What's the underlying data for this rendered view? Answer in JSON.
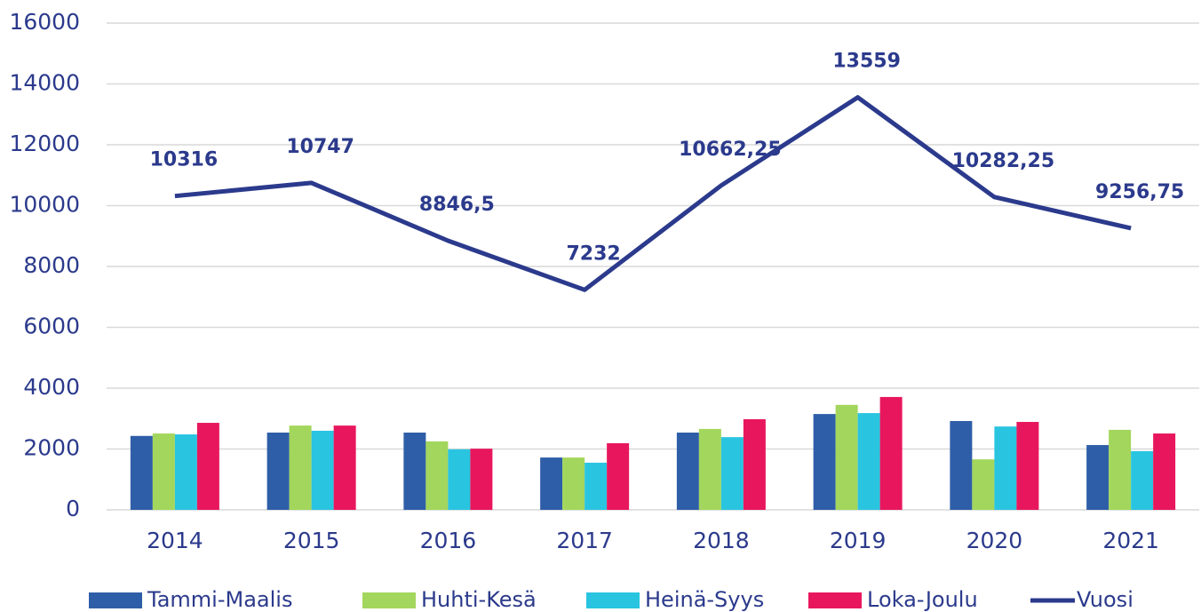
{
  "chart_data": {
    "type": "bar",
    "categories": [
      "2014",
      "2015",
      "2016",
      "2017",
      "2018",
      "2019",
      "2020",
      "2021"
    ],
    "series": [
      {
        "name": "Tammi-Maalis",
        "color": "#2f5ea8",
        "values": [
          2430,
          2540,
          2540,
          1720,
          2540,
          3150,
          2920,
          2130
        ]
      },
      {
        "name": "Huhti-Kesä",
        "color": "#a3d65c",
        "values": [
          2510,
          2770,
          2250,
          1720,
          2660,
          3450,
          1660,
          2630
        ]
      },
      {
        "name": "Heinä-Syys",
        "color": "#29c4e0",
        "values": [
          2480,
          2600,
          1990,
          1550,
          2390,
          3180,
          2740,
          1930
        ]
      },
      {
        "name": "Loka-Joulu",
        "color": "#e8175d",
        "values": [
          2860,
          2770,
          2010,
          2190,
          2980,
          3710,
          2890,
          2510
        ]
      },
      {
        "name": "Vuosi",
        "type": "line",
        "color": "#2b3a8c",
        "values": [
          10316,
          10747,
          8846.5,
          7232,
          10662.25,
          13559,
          10282.25,
          9256.75
        ],
        "value_labels": [
          "10316",
          "10747",
          "8846,5",
          "7232",
          "10662,25",
          "13559",
          "10282,25",
          "9256,75"
        ]
      }
    ],
    "ylim": [
      0,
      16000
    ],
    "yticks": [
      0,
      2000,
      4000,
      6000,
      8000,
      10000,
      12000,
      14000,
      16000
    ],
    "grid": true,
    "legend": "bottom"
  }
}
